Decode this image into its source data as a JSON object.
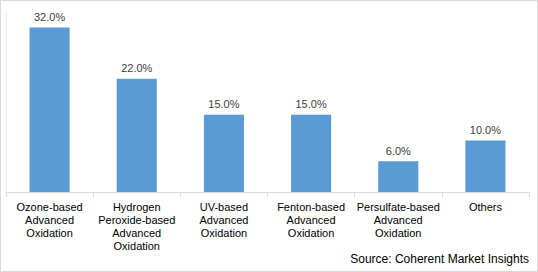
{
  "chart_data": {
    "type": "bar",
    "categories": [
      "Ozone-based\nAdvanced\nOxidation",
      "Hydrogen\nPeroxide-based\nAdvanced\nOxidation",
      "UV-based\nAdvanced\nOxidation",
      "Fenton-based\nAdvanced\nOxidation",
      "Persulfate-based\nAdvanced\nOxidation",
      "Others"
    ],
    "values": [
      32,
      22,
      15,
      15,
      6,
      10
    ],
    "value_labels": [
      "32.0%",
      "22.0%",
      "15.0%",
      "15.0%",
      "6.0%",
      "10.0%"
    ],
    "color": "#5b9bd5",
    "ylim": [
      0,
      35
    ],
    "grid": false,
    "data_labels": true,
    "tick_labels": "x",
    "annotations": [
      "Source: Coherent Market Insights"
    ]
  }
}
